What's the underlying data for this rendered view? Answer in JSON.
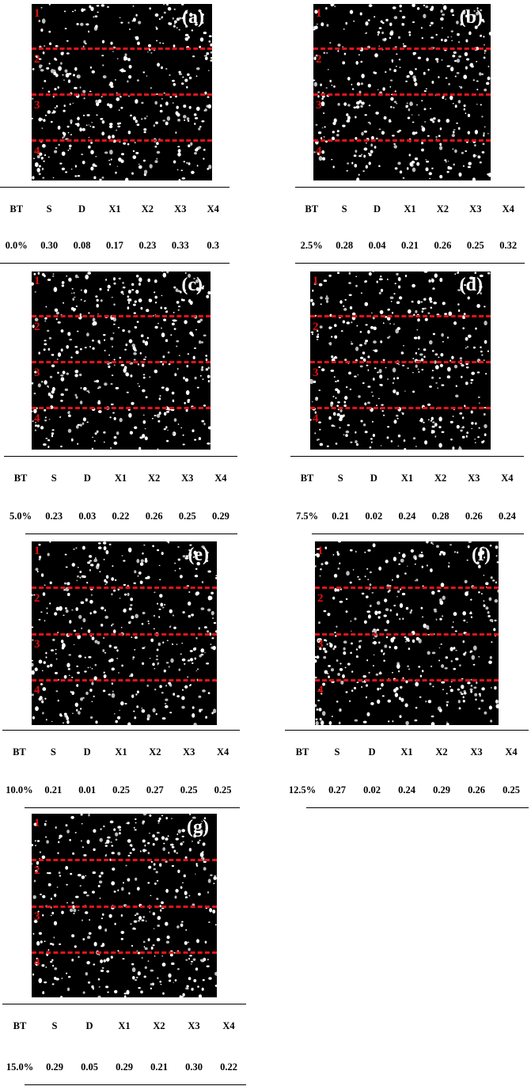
{
  "zone_numbers": [
    "1",
    "2",
    "3",
    "4"
  ],
  "headers": [
    "BT",
    "S",
    "D",
    "X1",
    "X2",
    "X3",
    "X4"
  ],
  "panels": [
    {
      "label": "(a)",
      "values": [
        "0.0%",
        "0.30",
        "0.08",
        "0.17",
        "0.23",
        "0.33",
        "0.3"
      ]
    },
    {
      "label": "(b)",
      "values": [
        "2.5%",
        "0.28",
        "0.04",
        "0.21",
        "0.26",
        "0.25",
        "0.32"
      ]
    },
    {
      "label": "(c)",
      "values": [
        "5.0%",
        "0.23",
        "0.03",
        "0.22",
        "0.26",
        "0.25",
        "0.29"
      ]
    },
    {
      "label": "(d)",
      "values": [
        "7.5%",
        "0.21",
        "0.02",
        "0.24",
        "0.28",
        "0.26",
        "0.24"
      ]
    },
    {
      "label": "(e)",
      "values": [
        "10.0%",
        "0.21",
        "0.01",
        "0.25",
        "0.27",
        "0.25",
        "0.25"
      ]
    },
    {
      "label": "(f)",
      "values": [
        "12.5%",
        "0.27",
        "0.02",
        "0.24",
        "0.29",
        "0.26",
        "0.25"
      ]
    },
    {
      "label": "(g)",
      "values": [
        "15.0%",
        "0.29",
        "0.05",
        "0.29",
        "0.21",
        "0.30",
        "0.22"
      ]
    }
  ]
}
